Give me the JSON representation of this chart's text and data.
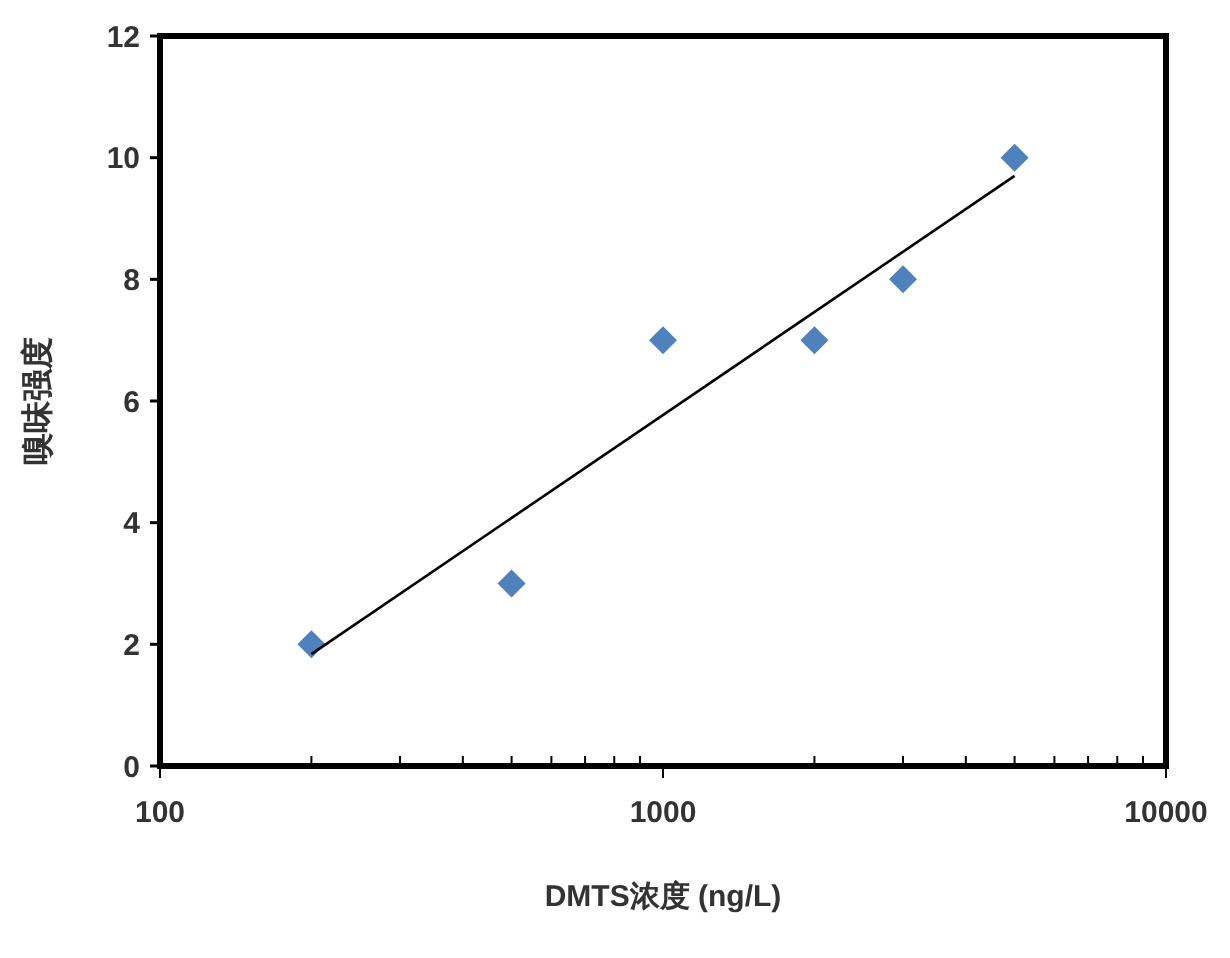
{
  "chart_data": {
    "type": "scatter",
    "xlabel": "DMTS浓度 (ng/L)",
    "ylabel": "嗅味强度",
    "log": "x",
    "xlim": [
      100,
      10000
    ],
    "ylim": [
      0,
      12
    ],
    "xticks": [
      100,
      {
        "value": 200,
        "label": null
      },
      {
        "value": 300,
        "label": null
      },
      {
        "value": 400,
        "label": null
      },
      {
        "value": 500,
        "label": null
      },
      {
        "value": 600,
        "label": null
      },
      {
        "value": 700,
        "label": null
      },
      {
        "value": 800,
        "label": null
      },
      {
        "value": 900,
        "label": null
      },
      1000,
      {
        "value": 2000,
        "label": null
      },
      {
        "value": 3000,
        "label": null
      },
      {
        "value": 4000,
        "label": null
      },
      {
        "value": 5000,
        "label": null
      },
      {
        "value": 6000,
        "label": null
      },
      {
        "value": 7000,
        "label": null
      },
      {
        "value": 8000,
        "label": null
      },
      {
        "value": 9000,
        "label": null
      },
      10000
    ],
    "yticks": [
      0,
      2,
      4,
      6,
      8,
      10,
      12
    ],
    "grid": false,
    "series": [
      {
        "color": "#4f81bd",
        "marker": "diamond",
        "x": [
          200,
          500,
          1000,
          2000,
          3000,
          5000
        ],
        "values": [
          2,
          3,
          7,
          7,
          8,
          10
        ]
      },
      {
        "type": "line",
        "color": "#000000",
        "marker": "none",
        "line_style": "solid",
        "x": [
          200,
          5000
        ],
        "values": [
          1.84,
          9.7
        ]
      }
    ]
  }
}
